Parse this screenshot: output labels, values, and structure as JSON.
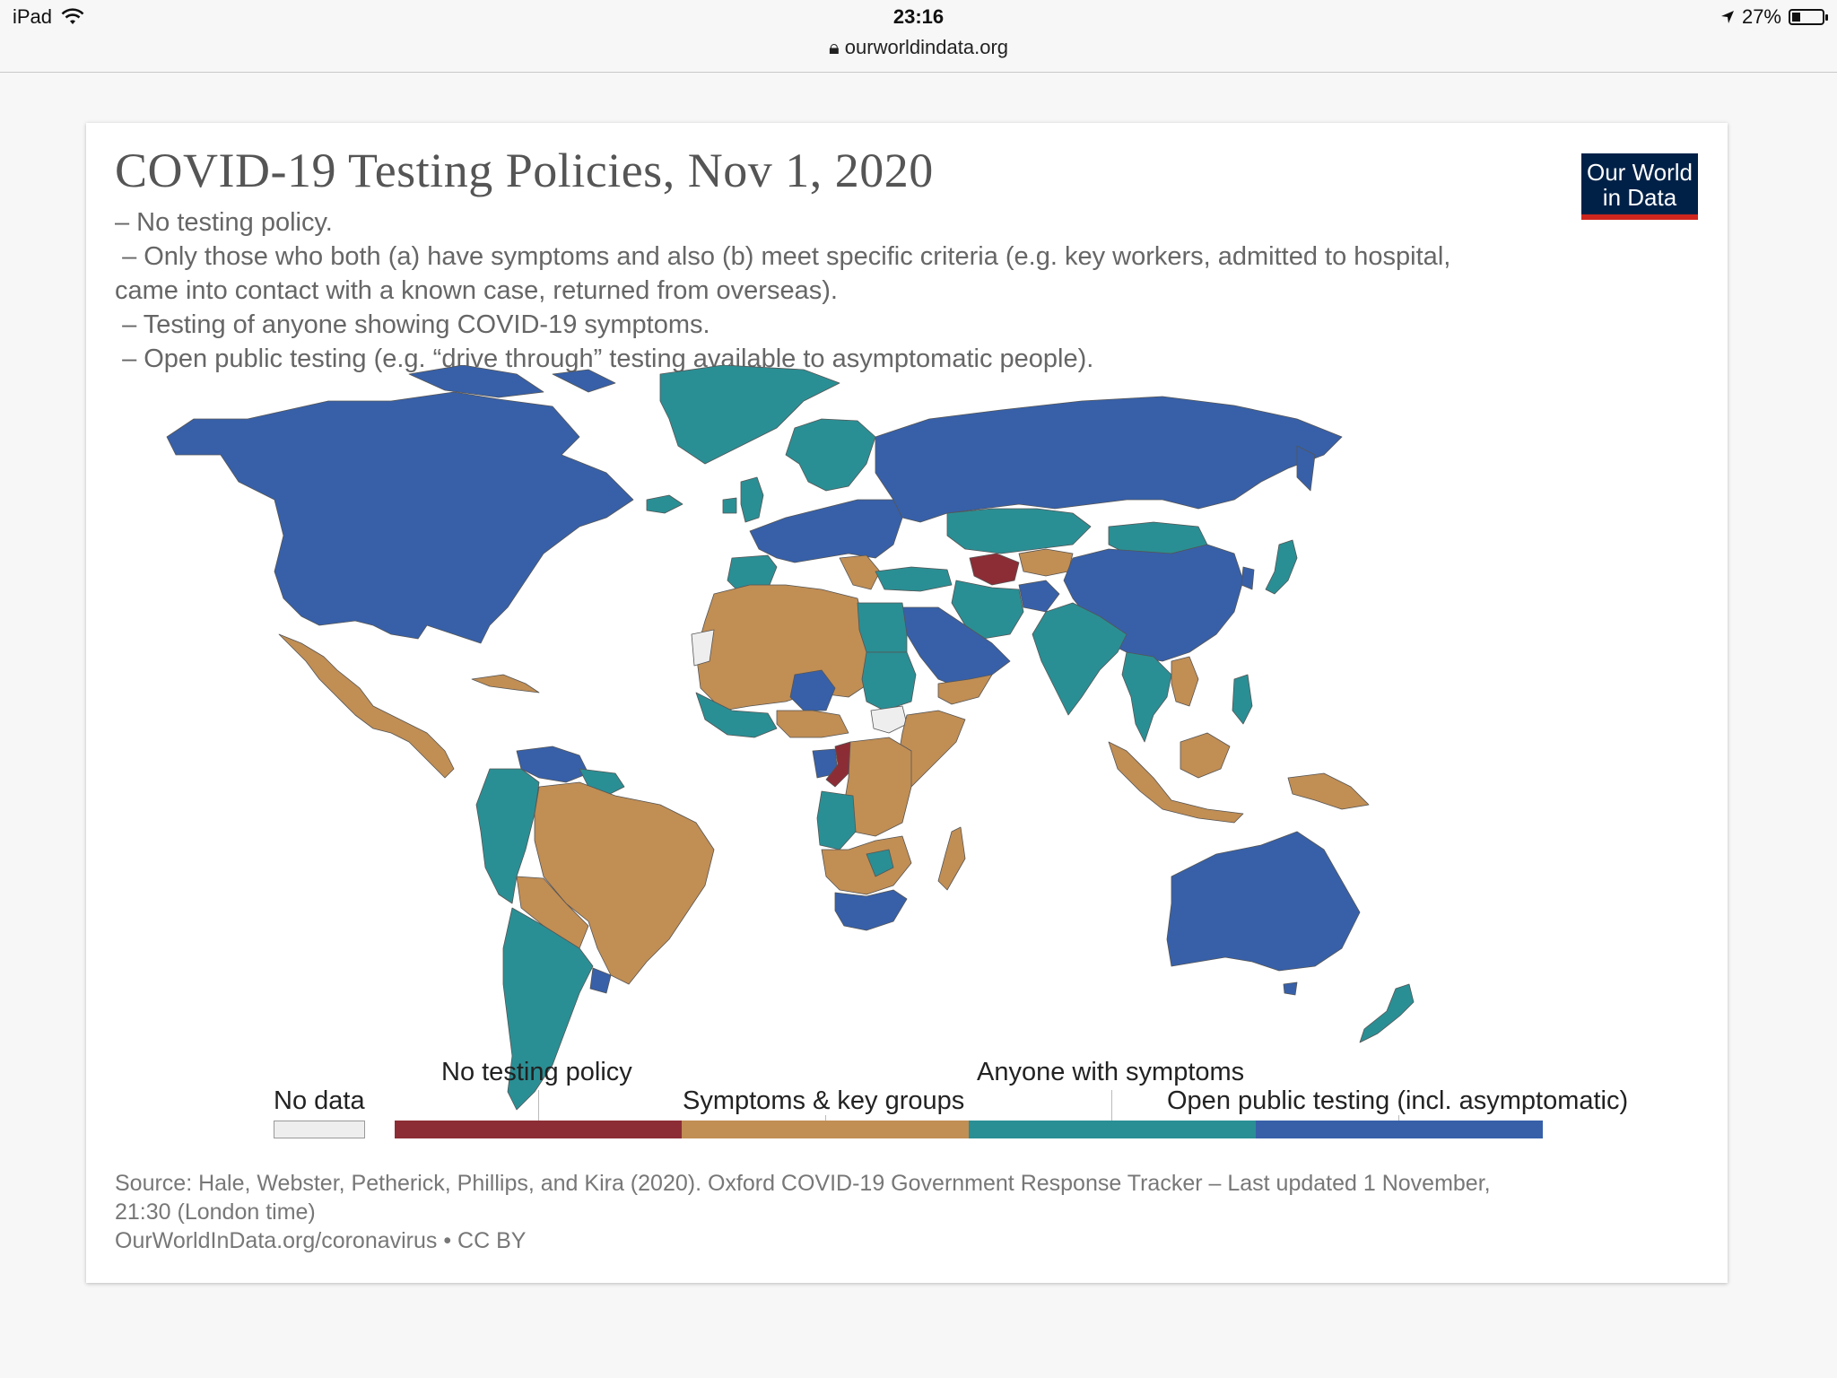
{
  "statusbar": {
    "device": "iPad",
    "time": "23:16",
    "url": "ourworldindata.org",
    "battery": "27%",
    "battery_level": 0.27
  },
  "chart": {
    "title": "COVID-19 Testing Policies, Nov 1, 2020",
    "subtitle_lines": [
      "– No testing policy.",
      " – Only those who both (a) have symptoms and also (b) meet specific criteria (e.g. key workers, admitted to hospital,",
      "came into contact with a known case, returned from overseas).",
      " – Testing of anyone showing COVID-19 symptoms.",
      " – Open public testing (e.g. “drive through” testing available to asymptomatic people)."
    ],
    "logo_line1": "Our World",
    "logo_line2": "in Data",
    "source_line1": "Source: Hale, Webster, Petherick, Phillips, and Kira (2020). Oxford COVID-19 Government Response Tracker – Last updated 1 November,",
    "source_line2": "21:30 (London time)",
    "source_line3": "OurWorldInData.org/coronavirus • CC BY"
  },
  "legend": {
    "no_data": "No data",
    "categories": [
      {
        "label": "No testing policy",
        "color": "#8c2d36"
      },
      {
        "label": "Symptoms & key groups",
        "color": "#c18e54"
      },
      {
        "label": "Anyone with symptoms",
        "color": "#2a8f94"
      },
      {
        "label": "Open public testing (incl. asymptomatic)",
        "color": "#3760a9"
      }
    ],
    "no_data_color": "#eeeeee"
  },
  "colors": {
    "none": "#8c2d36",
    "key": "#c18e54",
    "symptoms": "#2a8f94",
    "open": "#3760a9",
    "nodata": "#eeeeee"
  },
  "map_regions": [
    {
      "name": "north-america",
      "category": "open"
    },
    {
      "name": "greenland",
      "category": "symptoms"
    },
    {
      "name": "mexico-central-america",
      "category": "key"
    },
    {
      "name": "cuba",
      "category": "key"
    },
    {
      "name": "venezuela",
      "category": "open"
    },
    {
      "name": "colombia-andes",
      "category": "symptoms"
    },
    {
      "name": "brazil",
      "category": "key"
    },
    {
      "name": "bolivia-paraguay",
      "category": "key"
    },
    {
      "name": "chile-argentina",
      "category": "symptoms"
    },
    {
      "name": "uruguay",
      "category": "open"
    },
    {
      "name": "iceland",
      "category": "symptoms"
    },
    {
      "name": "scandinavia",
      "category": "symptoms"
    },
    {
      "name": "uk-ireland",
      "category": "symptoms"
    },
    {
      "name": "western-europe",
      "category": "open"
    },
    {
      "name": "iberia",
      "category": "symptoms"
    },
    {
      "name": "balkans",
      "category": "key"
    },
    {
      "name": "russia",
      "category": "open"
    },
    {
      "name": "kazakhstan",
      "category": "symptoms"
    },
    {
      "name": "turkmenistan",
      "category": "none"
    },
    {
      "name": "central-asia",
      "category": "key"
    },
    {
      "name": "afghanistan",
      "category": "open"
    },
    {
      "name": "iran",
      "category": "symptoms"
    },
    {
      "name": "turkey",
      "category": "symptoms"
    },
    {
      "name": "mongolia",
      "category": "symptoms"
    },
    {
      "name": "china",
      "category": "open"
    },
    {
      "name": "india-south-asia",
      "category": "symptoms"
    },
    {
      "name": "southeast-asia-mainland",
      "category": "symptoms"
    },
    {
      "name": "indochina-east",
      "category": "key"
    },
    {
      "name": "japan",
      "category": "symptoms"
    },
    {
      "name": "korea",
      "category": "open"
    },
    {
      "name": "philippines",
      "category": "symptoms"
    },
    {
      "name": "indonesia",
      "category": "key"
    },
    {
      "name": "borneo",
      "category": "key"
    },
    {
      "name": "new-guinea",
      "category": "key"
    },
    {
      "name": "arabia",
      "category": "open"
    },
    {
      "name": "yemen-oman",
      "category": "key"
    },
    {
      "name": "maghreb-sahel",
      "category": "key"
    },
    {
      "name": "egypt",
      "category": "symptoms"
    },
    {
      "name": "sudan",
      "category": "symptoms"
    },
    {
      "name": "south-sudan",
      "category": "nodata"
    },
    {
      "name": "western-sahara",
      "category": "nodata"
    },
    {
      "name": "niger",
      "category": "open"
    },
    {
      "name": "nigeria-gulf",
      "category": "key"
    },
    {
      "name": "west-africa-coast",
      "category": "symptoms"
    },
    {
      "name": "horn-of-africa",
      "category": "key"
    },
    {
      "name": "congo",
      "category": "none"
    },
    {
      "name": "gabon",
      "category": "open"
    },
    {
      "name": "drc-central",
      "category": "key"
    },
    {
      "name": "angola",
      "category": "symptoms"
    },
    {
      "name": "namibia-botswana",
      "category": "key"
    },
    {
      "name": "zimbabwe",
      "category": "symptoms"
    },
    {
      "name": "south-africa",
      "category": "open"
    },
    {
      "name": "madagascar",
      "category": "key"
    },
    {
      "name": "australia",
      "category": "open"
    },
    {
      "name": "new-zealand",
      "category": "symptoms"
    }
  ]
}
